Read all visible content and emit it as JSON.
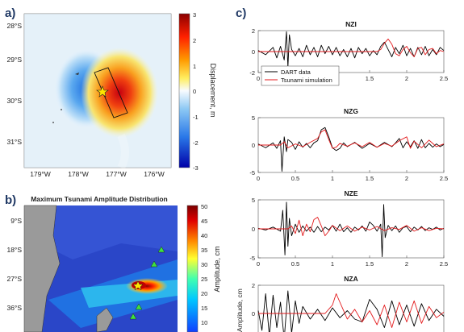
{
  "panels": {
    "a": {
      "label": "a)",
      "colorbar": {
        "label": "Displacement, m",
        "ticks": [
          "3",
          "2",
          "1",
          "0",
          "-1",
          "-2",
          "-3"
        ]
      },
      "lat_ticks": [
        "28°S",
        "29°S",
        "30°S",
        "31°S"
      ],
      "lon_ticks": [
        "179°W",
        "178°W",
        "177°W",
        "176°W"
      ]
    },
    "b": {
      "label": "b)",
      "title": "Maximum Tsunami Amplitude Distribution",
      "colorbar": {
        "label": "Amplitude, cm",
        "ticks": [
          "50",
          "45",
          "40",
          "35",
          "30",
          "25",
          "20",
          "15",
          "10"
        ]
      },
      "lat_ticks": [
        "9°S",
        "18°S",
        "27°S",
        "36°S"
      ]
    },
    "c": {
      "label": "c)",
      "ylabel_fragment": "Amplitude, cm",
      "legend": [
        "DART data",
        "Tsunami simulation"
      ]
    }
  },
  "colors": {
    "data": "#000000",
    "simulation": "#e31a1c",
    "label": "#1f3864"
  },
  "chart_data": [
    {
      "type": "line",
      "title": "NZI",
      "xlim": [
        0,
        2.5
      ],
      "ylim": [
        -2,
        2
      ],
      "x_ticks": [
        "0",
        "0.5",
        "1",
        "1.5",
        "2",
        "2.5"
      ],
      "y_ticks": [
        "2",
        "0",
        "-2"
      ],
      "series": [
        {
          "name": "DART data",
          "x": [
            0,
            0.1,
            0.2,
            0.25,
            0.3,
            0.35,
            0.38,
            0.4,
            0.42,
            0.45,
            0.5,
            0.55,
            0.6,
            0.65,
            0.7,
            0.75,
            0.8,
            0.85,
            0.9,
            0.95,
            1,
            1.05,
            1.1,
            1.15,
            1.2,
            1.25,
            1.3,
            1.35,
            1.4,
            1.45,
            1.5,
            1.55,
            1.6,
            1.65,
            1.7,
            1.75,
            1.8,
            1.85,
            1.9,
            1.95,
            2,
            2.05,
            2.1,
            2.15,
            2.2,
            2.25,
            2.3,
            2.35,
            2.4,
            2.45,
            2.5
          ],
          "y": [
            0.1,
            -0.3,
            0.4,
            -0.6,
            0.5,
            -0.8,
            1.9,
            -1.5,
            1.6,
            0.2,
            -0.4,
            0.3,
            -0.5,
            0.6,
            -0.3,
            0.4,
            -0.5,
            0.6,
            -0.2,
            0.5,
            -0.3,
            0.4,
            -0.4,
            0.2,
            -0.5,
            0.3,
            -0.6,
            0.4,
            -0.2,
            0.3,
            -0.4,
            0.1,
            -0.3,
            0.5,
            0.9,
            0.2,
            -0.5,
            0.4,
            -0.2,
            0.6,
            -0.4,
            0.3,
            -0.5,
            0.4,
            -0.3,
            0.5,
            -0.4,
            0.2,
            -0.3,
            0.4,
            0.1
          ]
        },
        {
          "name": "Tsunami simulation",
          "x": [
            0,
            0.5,
            1,
            1.5,
            1.6,
            1.65,
            1.7,
            1.75,
            1.8,
            1.85,
            1.9,
            1.95,
            2,
            2.05,
            2.1,
            2.15,
            2.2,
            2.25,
            2.3,
            2.35,
            2.4,
            2.45,
            2.5
          ],
          "y": [
            0,
            0,
            0,
            0,
            0,
            0.2,
            0.8,
            1.2,
            0.7,
            -0.2,
            -0.4,
            0.2,
            0.5,
            -0.1,
            -0.5,
            0.3,
            0.4,
            -0.3,
            0.2,
            0.3,
            -0.2,
            0.1,
            0
          ]
        }
      ]
    },
    {
      "type": "line",
      "title": "NZG",
      "xlim": [
        0,
        2.5
      ],
      "ylim": [
        -5,
        5
      ],
      "x_ticks": [
        "0",
        "0.5",
        "1",
        "1.5",
        "2",
        "2.5"
      ],
      "y_ticks": [
        "5",
        "0",
        "-5"
      ],
      "series": [
        {
          "name": "DART data",
          "x": [
            0,
            0.1,
            0.2,
            0.25,
            0.3,
            0.32,
            0.35,
            0.38,
            0.4,
            0.45,
            0.5,
            0.55,
            0.6,
            0.65,
            0.7,
            0.75,
            0.8,
            0.85,
            0.9,
            0.95,
            1,
            1.05,
            1.1,
            1.15,
            1.2,
            1.3,
            1.4,
            1.5,
            1.6,
            1.7,
            1.8,
            1.85,
            1.9,
            1.95,
            2,
            2.05,
            2.1,
            2.15,
            2.2,
            2.25,
            2.3,
            2.35,
            2.4,
            2.45,
            2.5
          ],
          "y": [
            0.2,
            -0.5,
            0.4,
            -0.6,
            0.8,
            -4.8,
            1.5,
            -1.2,
            1.0,
            0.5,
            -0.8,
            0.6,
            -0.4,
            0.3,
            -0.5,
            0.4,
            0.8,
            2.8,
            3.2,
            1.5,
            -0.5,
            -1.0,
            -0.6,
            0.4,
            -0.3,
            0.5,
            -0.6,
            0.3,
            -0.4,
            0.5,
            -0.3,
            0.4,
            1.2,
            -0.5,
            0.6,
            -0.3,
            0.8,
            -0.6,
            1.0,
            -0.5,
            0.3,
            -0.4,
            0.2,
            -0.3,
            0.1
          ]
        },
        {
          "name": "Tsunami simulation",
          "x": [
            0,
            0.3,
            0.35,
            0.4,
            0.5,
            0.6,
            0.7,
            0.8,
            0.85,
            0.9,
            0.95,
            1,
            1.05,
            1.1,
            1.2,
            1.3,
            1.4,
            1.5,
            1.6,
            1.7,
            1.8,
            1.9,
            2,
            2.05,
            2.1,
            2.2,
            2.3,
            2.4,
            2.5
          ],
          "y": [
            0,
            0,
            0.6,
            -0.5,
            0.2,
            -0.3,
            0.5,
            1.2,
            2.4,
            2.8,
            1.0,
            -0.6,
            -0.4,
            0.3,
            -0.2,
            0.4,
            -0.3,
            0.5,
            -0.4,
            0.3,
            -0.2,
            0.8,
            1.5,
            -0.6,
            0.7,
            -0.5,
            0.9,
            -0.3,
            0.2
          ]
        }
      ]
    },
    {
      "type": "line",
      "title": "NZE",
      "xlim": [
        0,
        2.5
      ],
      "ylim": [
        -5,
        5
      ],
      "x_ticks": [
        "0",
        "0.5",
        "1",
        "1.5",
        "2",
        "2.5"
      ],
      "y_ticks": [
        "5",
        "0",
        "-5"
      ],
      "series": [
        {
          "name": "DART data",
          "x": [
            0,
            0.1,
            0.2,
            0.3,
            0.33,
            0.36,
            0.38,
            0.4,
            0.42,
            0.45,
            0.5,
            0.55,
            0.6,
            0.65,
            0.7,
            0.75,
            0.8,
            0.85,
            0.9,
            0.95,
            1,
            1.05,
            1.1,
            1.15,
            1.2,
            1.25,
            1.3,
            1.35,
            1.4,
            1.45,
            1.5,
            1.55,
            1.6,
            1.65,
            1.67,
            1.69,
            1.71,
            1.75,
            1.8,
            1.85,
            1.9,
            1.95,
            2,
            2.05,
            2.1,
            2.15,
            2.2,
            2.25,
            2.3,
            2.35,
            2.4,
            2.45,
            2.5
          ],
          "y": [
            0.1,
            -0.2,
            0.3,
            -0.4,
            3.2,
            -4.5,
            4.6,
            -3.0,
            1.8,
            -1.2,
            0.8,
            -0.6,
            0.5,
            -0.4,
            0.3,
            -0.6,
            0.4,
            -0.5,
            0.3,
            -0.2,
            0.6,
            -0.4,
            0.8,
            -0.5,
            0.2,
            -0.6,
            0.3,
            -0.2,
            0.5,
            -0.4,
            1.2,
            0.6,
            -0.4,
            0.8,
            -4.8,
            4.2,
            -1.5,
            0.6,
            -0.3,
            0.5,
            -0.6,
            0.2,
            0.4,
            -0.5,
            0.3,
            -0.2,
            0.4,
            -0.3,
            0.2,
            -0.1,
            0.3,
            -0.2,
            0.1
          ]
        },
        {
          "name": "Tsunami simulation",
          "x": [
            0,
            0.4,
            0.45,
            0.5,
            0.55,
            0.6,
            0.65,
            0.7,
            0.75,
            0.8,
            0.85,
            0.9,
            0.95,
            1,
            1.1,
            1.2,
            1.3,
            1.4,
            1.5,
            1.6,
            1.7,
            1.8,
            1.9,
            2,
            2.1,
            2.2,
            2.3,
            2.4,
            2.5
          ],
          "y": [
            0,
            0,
            0.5,
            -0.8,
            1.5,
            -1.2,
            0.8,
            -0.5,
            1.6,
            2.0,
            0.5,
            -1.2,
            -0.4,
            0.6,
            -0.3,
            0.5,
            -0.4,
            0.3,
            -0.2,
            0.4,
            -0.3,
            0.2,
            -0.1,
            0.6,
            -0.4,
            0.2,
            -0.3,
            0.1,
            0
          ]
        }
      ]
    },
    {
      "type": "line",
      "title": "NZA",
      "xlim": [
        0,
        2.5
      ],
      "ylim": [
        -2,
        2
      ],
      "y_ticks": [
        "2",
        "0"
      ],
      "series": [
        {
          "name": "DART data",
          "x": [
            0,
            0.05,
            0.1,
            0.15,
            0.2,
            0.25,
            0.3,
            0.35,
            0.4,
            0.45,
            0.5,
            0.55,
            0.6,
            0.7,
            0.8,
            0.9,
            1,
            1.1,
            1.2,
            1.3,
            1.4,
            1.5,
            1.6,
            1.7,
            1.8,
            1.9,
            2,
            2.1,
            2.2,
            2.3,
            2.4,
            2.5
          ],
          "y": [
            0.2,
            -1.2,
            1.4,
            -1.6,
            1.3,
            -1.0,
            0.8,
            -1.8,
            1.6,
            -1.4,
            0.9,
            -0.7,
            0.5,
            -0.4,
            0.3,
            -0.5,
            0.4,
            -0.3,
            0.2,
            -0.4,
            -0.6,
            1.0,
            0.3,
            -1.0,
            0.9,
            -0.8,
            0.6,
            -0.9,
            0.7,
            -0.5,
            0.3,
            -0.2
          ]
        },
        {
          "name": "Tsunami simulation",
          "x": [
            0,
            0.5,
            0.9,
            1,
            1.05,
            1.1,
            1.2,
            1.3,
            1.4,
            1.5,
            1.6,
            1.7,
            1.8,
            1.9,
            2,
            2.1,
            2.2,
            2.3,
            2.4,
            2.5
          ],
          "y": [
            0,
            0,
            0,
            0.6,
            1.4,
            0.8,
            -0.4,
            0.3,
            -0.6,
            0.2,
            -0.8,
            0.6,
            -1.0,
            0.8,
            -0.6,
            0.9,
            -0.7,
            0.5,
            -0.3,
            0.1
          ]
        }
      ]
    }
  ]
}
